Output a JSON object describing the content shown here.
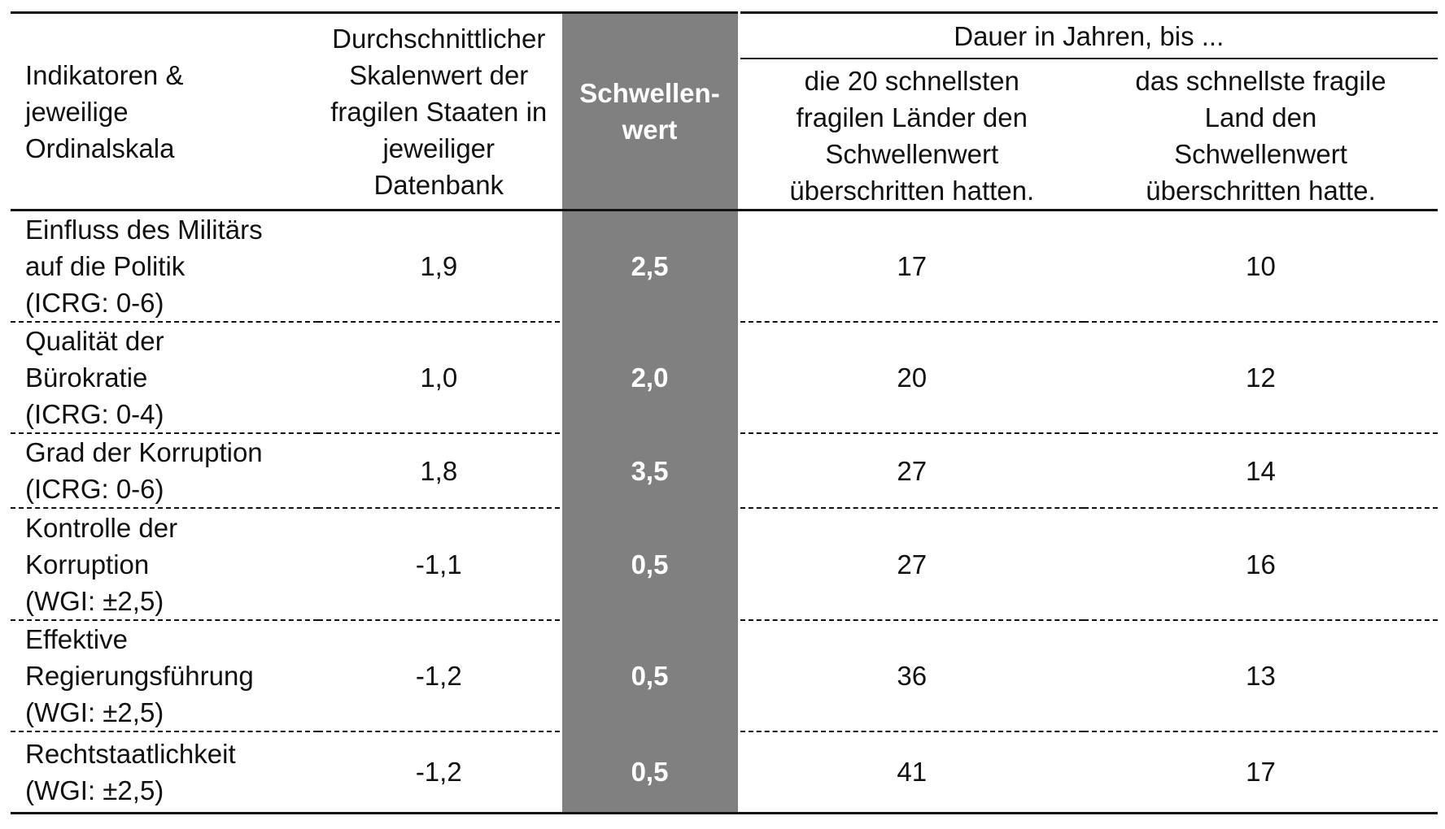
{
  "header": {
    "indicator_col": [
      "Indikatoren &",
      "jeweilige",
      "Ordinalskala"
    ],
    "average_col": [
      "Durchschnittlicher",
      "Skalenwert der",
      "fragilen Staaten in",
      "jeweiliger",
      "Datenbank"
    ],
    "threshold_col": [
      "Schwellen-",
      "wert"
    ],
    "duration_group": "Dauer in Jahren, bis ...",
    "duration_20_col": [
      "die 20 schnellsten",
      "fragilen Länder den",
      "Schwellenwert",
      "überschritten hatten."
    ],
    "duration_1_col": [
      "das schnellste fragile",
      "Land den",
      "Schwellenwert",
      "überschritten hatte."
    ]
  },
  "rows": [
    {
      "indicator": [
        "Einfluss des Militärs",
        "auf die Politik",
        "(ICRG: 0-6)"
      ],
      "average": "1,9",
      "threshold": "2,5",
      "years_20": "17",
      "years_1": "10"
    },
    {
      "indicator": [
        "Qualität der",
        "Bürokratie",
        "(ICRG: 0-4)"
      ],
      "average": "1,0",
      "threshold": "2,0",
      "years_20": "20",
      "years_1": "12"
    },
    {
      "indicator": [
        "Grad der Korruption",
        "(ICRG: 0-6)"
      ],
      "average": "1,8",
      "threshold": "3,5",
      "years_20": "27",
      "years_1": "14"
    },
    {
      "indicator": [
        "Kontrolle der",
        "Korruption",
        "(WGI: ±2,5)"
      ],
      "average": "-1,1",
      "threshold": "0,5",
      "years_20": "27",
      "years_1": "16"
    },
    {
      "indicator": [
        "Effektive",
        "Regierungsführung",
        "(WGI: ±2,5)"
      ],
      "average": "-1,2",
      "threshold": "0,5",
      "years_20": "36",
      "years_1": "13"
    },
    {
      "indicator": [
        "Rechtstaatlichkeit",
        "(WGI: ±2,5)"
      ],
      "average": "-1,2",
      "threshold": "0,5",
      "years_20": "41",
      "years_1": "17"
    }
  ]
}
